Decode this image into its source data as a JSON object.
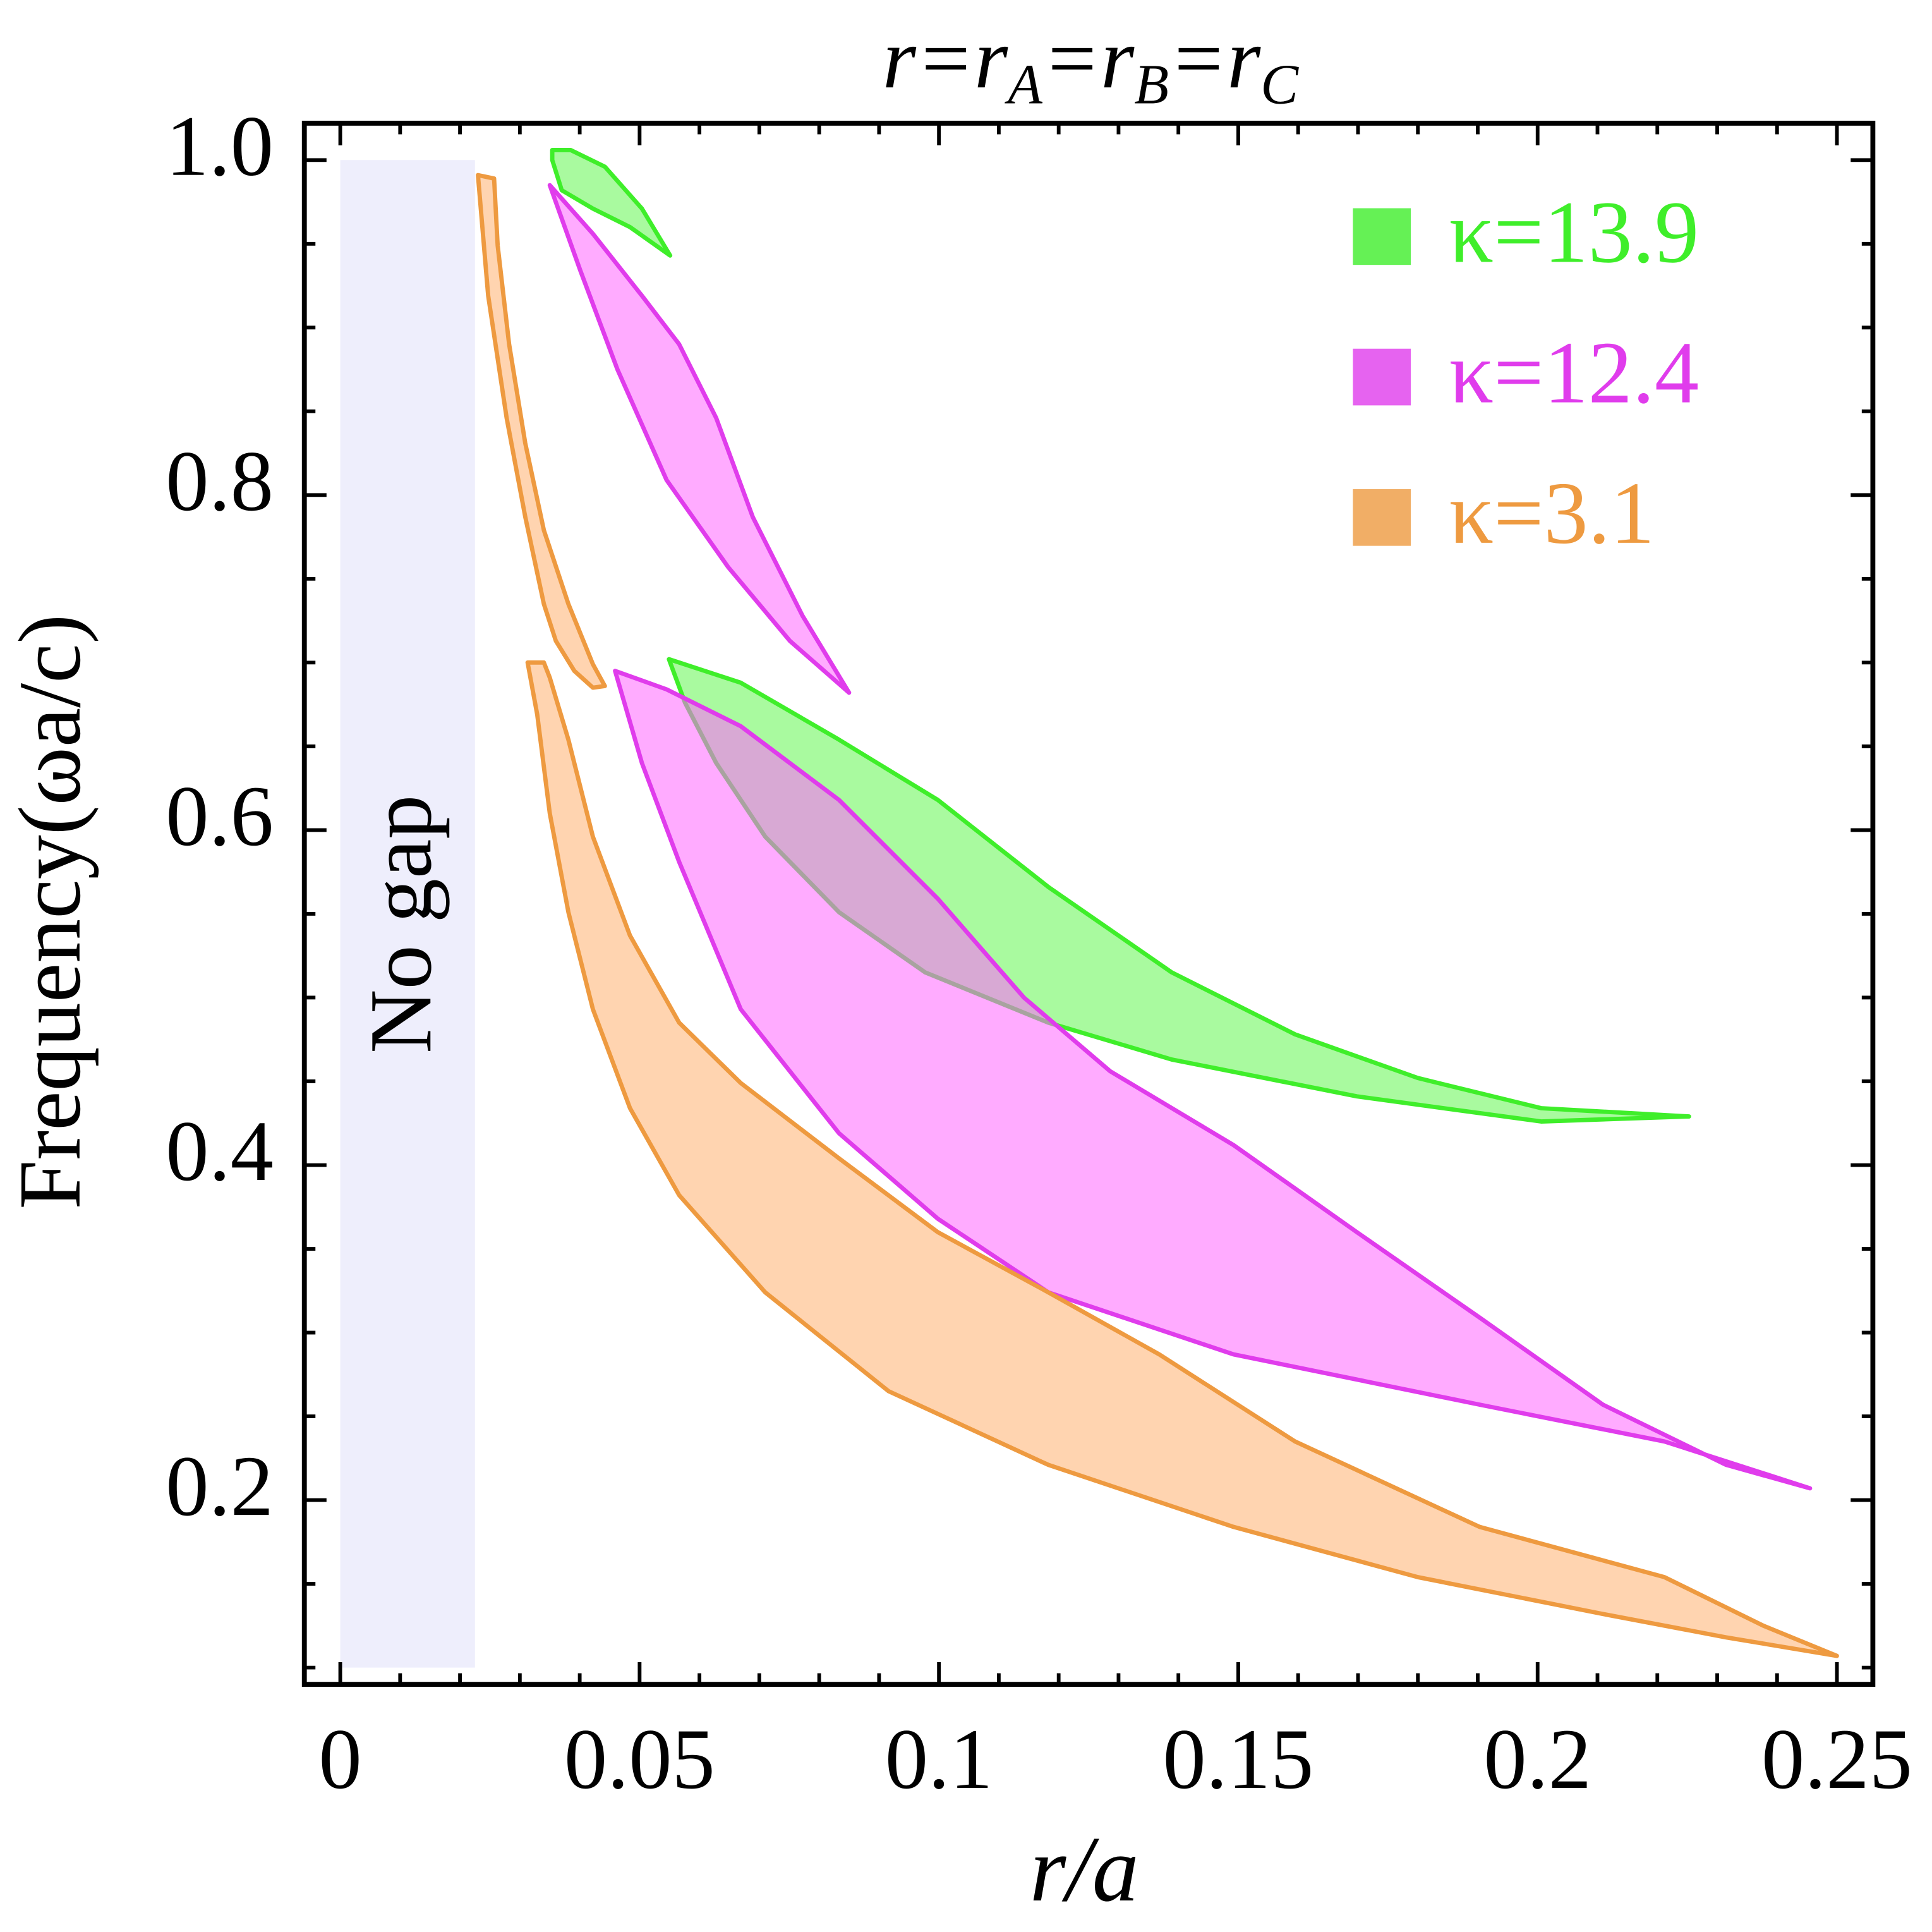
{
  "chart_data": {
    "type": "region",
    "title": [
      "r=r",
      "A",
      "=r",
      "B",
      "=r",
      "C"
    ],
    "x_label": "r/a",
    "y_label": "Frequency(ωa/c)",
    "xlim": [
      -0.006,
      0.256
    ],
    "ylim": [
      0.09,
      1.022
    ],
    "xticks": [
      0,
      0.05,
      0.1,
      0.15,
      0.2,
      0.25
    ],
    "yticks": [
      0.2,
      0.4,
      0.6,
      0.8,
      {
        "value": 1,
        "label": "1.0"
      }
    ],
    "x_minor_ticks": [
      0.01,
      0.02,
      0.03,
      0.04,
      0.06,
      0.07,
      0.08,
      0.09,
      0.11,
      0.12,
      0.13,
      0.14,
      0.16,
      0.17,
      0.18,
      0.19,
      0.21,
      0.22,
      0.23,
      0.24
    ],
    "y_minor_ticks": [
      0.1,
      0.15,
      0.25,
      0.3,
      0.35,
      0.45,
      0.5,
      0.55,
      0.65,
      0.7,
      0.75,
      0.85,
      0.9,
      0.95
    ],
    "legend": "upper right",
    "no_gap": {
      "label": "No gap",
      "x": [
        0,
        0.0225
      ],
      "y": [
        0.1,
        1.0
      ],
      "color": "#eeeefc"
    },
    "series": [
      {
        "name": "κ=13.9",
        "color": "#3fee2a",
        "fill": "#62f550",
        "regions": [
          {
            "x": [
              0.0354,
              0.0385,
              0.0442,
              0.0504,
              0.0551,
              0.0484,
              0.0422,
              0.037,
              0.0354
            ],
            "y": [
              1.006,
              1.006,
              0.996,
              0.971,
              0.943,
              0.96,
              0.971,
              0.982,
              1.0
            ]
          },
          {
            "x": [
              0.0549,
              0.0669,
              0.0833,
              0.0998,
              0.1183,
              0.1389,
              0.1595,
              0.18,
              0.2006,
              0.2253,
              0.2006,
              0.1698,
              0.1389,
              0.1183,
              0.0977,
              0.0833,
              0.071,
              0.0628,
              0.0576
            ],
            "y": [
              0.702,
              0.688,
              0.654,
              0.618,
              0.566,
              0.515,
              0.478,
              0.452,
              0.434,
              0.429,
              0.426,
              0.441,
              0.463,
              0.485,
              0.515,
              0.551,
              0.596,
              0.64,
              0.676
            ]
          }
        ]
      },
      {
        "name": "κ=12.4",
        "color": "#e03cec",
        "fill": "#ff66ff",
        "regions": [
          {
            "x": [
              0.035,
              0.0422,
              0.0504,
              0.0566,
              0.0628,
              0.0689,
              0.0772,
              0.085,
              0.0751,
              0.0648,
              0.0545,
              0.0463,
              0.0401
            ],
            "y": [
              0.985,
              0.956,
              0.919,
              0.89,
              0.846,
              0.787,
              0.728,
              0.682,
              0.713,
              0.757,
              0.809,
              0.875,
              0.934
            ]
          },
          {
            "x": [
              0.0459,
              0.0545,
              0.0669,
              0.0833,
              0.0998,
              0.1142,
              0.1286,
              0.1492,
              0.1698,
              0.1903,
              0.2109,
              0.2315,
              0.2455,
              0.2212,
              0.1903,
              0.1492,
              0.1183,
              0.0998,
              0.0833,
              0.0669,
              0.0566,
              0.0504
            ],
            "y": [
              0.695,
              0.684,
              0.662,
              0.618,
              0.559,
              0.5,
              0.456,
              0.412,
              0.36,
              0.309,
              0.257,
              0.221,
              0.207,
              0.235,
              0.257,
              0.287,
              0.324,
              0.368,
              0.419,
              0.493,
              0.581,
              0.64
            ]
          }
        ]
      },
      {
        "name": "κ=3.1",
        "color": "#ee9a40",
        "fill": "#ffb070",
        "regions": [
          {
            "x": [
              0.023,
              0.0257,
              0.0263,
              0.0282,
              0.0309,
              0.034,
              0.0381,
              0.0422,
              0.0442,
              0.0422,
              0.0391,
              0.036,
              0.034,
              0.0309,
              0.0278,
              0.0247
            ],
            "y": [
              0.991,
              0.989,
              0.949,
              0.89,
              0.831,
              0.779,
              0.735,
              0.699,
              0.686,
              0.685,
              0.695,
              0.713,
              0.735,
              0.787,
              0.846,
              0.919
            ]
          },
          {
            "x": [
              0.0313,
              0.034,
              0.035,
              0.0381,
              0.0422,
              0.0484,
              0.0566,
              0.0669,
              0.0833,
              0.0998,
              0.1183,
              0.1368,
              0.1595,
              0.1903,
              0.2212,
              0.2377,
              0.25,
              0.2315,
              0.2109,
              0.18,
              0.1492,
              0.1183,
              0.0916,
              0.071,
              0.0566,
              0.0484,
              0.0422,
              0.0381,
              0.035,
              0.0329
            ],
            "y": [
              0.7,
              0.7,
              0.691,
              0.654,
              0.596,
              0.537,
              0.485,
              0.449,
              0.404,
              0.36,
              0.324,
              0.287,
              0.235,
              0.184,
              0.154,
              0.125,
              0.107,
              0.118,
              0.132,
              0.154,
              0.184,
              0.221,
              0.265,
              0.324,
              0.382,
              0.434,
              0.493,
              0.551,
              0.61,
              0.669
            ]
          }
        ]
      }
    ]
  }
}
